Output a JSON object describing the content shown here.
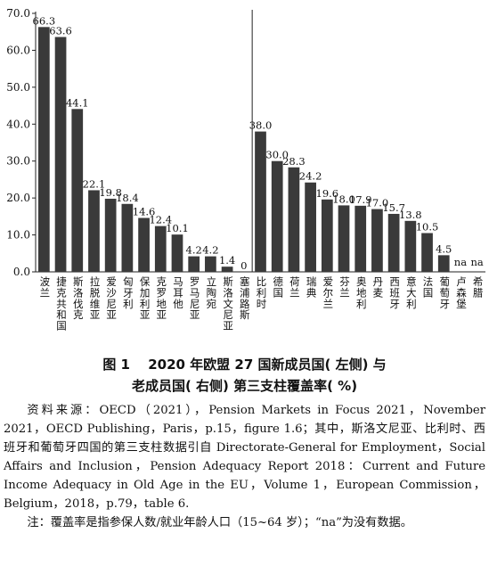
{
  "chart_data": {
    "type": "bar",
    "ylim": [
      0,
      70
    ],
    "yticks": [
      "0.0",
      "10.0",
      "20.0",
      "30.0",
      "40.0",
      "50.0",
      "60.0",
      "70.0"
    ],
    "left_group": {
      "categories": [
        "波兰",
        "捷克共和国",
        "斯洛伐克",
        "拉脱维亚",
        "爱沙尼亚",
        "匈牙利",
        "保加利亚",
        "克罗地亚",
        "马耳他",
        "罗马尼亚",
        "立陶宛",
        "斯洛文尼亚",
        "塞浦路斯"
      ],
      "values": [
        66.3,
        63.6,
        44.1,
        22.1,
        19.8,
        18.4,
        14.6,
        12.4,
        10.1,
        4.2,
        4.2,
        1.4,
        0
      ],
      "labels": [
        "66.3",
        "63.6",
        "44.1",
        "22.1",
        "19.8",
        "18.4",
        "14.6",
        "12.4",
        "10.1",
        "4.2",
        "4.2",
        "1.4",
        "0"
      ]
    },
    "right_group": {
      "categories": [
        "比利时",
        "德国",
        "荷兰",
        "瑞典",
        "爱尔兰",
        "芬兰",
        "奥地利",
        "丹麦",
        "西班牙",
        "意大利",
        "法国",
        "葡萄牙",
        "卢森堡",
        "希腊"
      ],
      "values": [
        38.0,
        30.0,
        28.3,
        24.2,
        19.6,
        18.0,
        17.9,
        17.0,
        15.7,
        13.8,
        10.5,
        4.5,
        null,
        null
      ],
      "labels": [
        "38.0",
        "30.0",
        "28.3",
        "24.2",
        "19.6",
        "18.0",
        "17.9",
        "17.0",
        "15.7",
        "13.8",
        "10.5",
        "4.5",
        "na",
        "na"
      ]
    },
    "bar_color": "#3a3a3a",
    "grid": false
  },
  "caption": {
    "line1": "图 1　 2020 年欧盟 27 国新成员国( 左侧) 与",
    "line2": "老成员国( 右侧) 第三支柱覆盖率( %)"
  },
  "source_note": "资料来源：OECD（2021），Pension Markets in Focus 2021，November 2021，OECD Publishing，Paris，p.15，figure 1.6；其中，斯洛文尼亚、比利时、西班牙和葡萄牙四国的第三支柱数据引自 Directorate-General for Employment，Social Affairs and Inclusion，Pension Adequacy Report 2018：Current and Future Income Adequacy in Old Age in the EU，Volume 1，European Commission，Belgium，2018，p.79，table 6.",
  "note": "注：覆盖率是指参保人数/就业年龄人口（15~64 岁）；“na”为没有数据。"
}
